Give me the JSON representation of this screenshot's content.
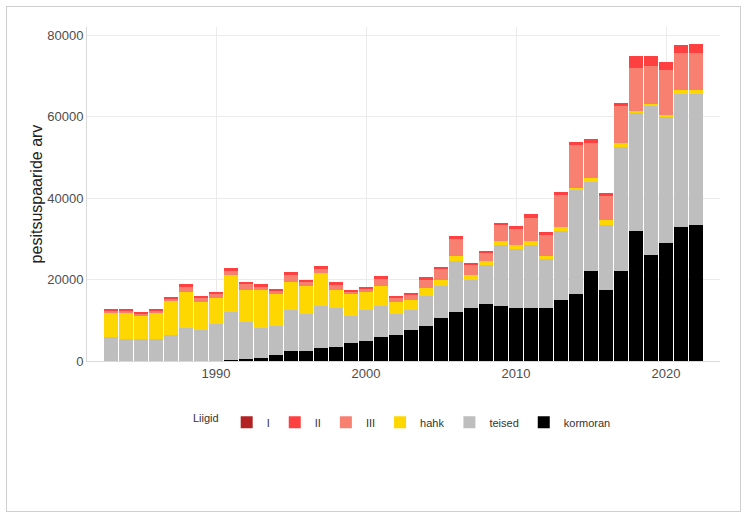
{
  "chart_data": {
    "type": "bar",
    "stacked": true,
    "y_label": "pesitsuspaaride arv",
    "legend_title": "Liigid",
    "legend": "bottom",
    "grid": true,
    "x": [
      1983,
      1984,
      1985,
      1986,
      1987,
      1988,
      1989,
      1990,
      1991,
      1992,
      1993,
      1994,
      1995,
      1996,
      1997,
      1998,
      1999,
      2000,
      2001,
      2002,
      2003,
      2004,
      2005,
      2006,
      2007,
      2008,
      2009,
      2010,
      2011,
      2012,
      2013,
      2014,
      2015,
      2016,
      2017,
      2018,
      2019,
      2020,
      2021,
      2022
    ],
    "xlim": [
      1981.4,
      2023.6
    ],
    "xticks": [
      1990,
      2000,
      2010,
      2020
    ],
    "ylim": [
      0,
      82000
    ],
    "yticks": [
      0,
      20000,
      40000,
      60000,
      80000
    ],
    "series": [
      {
        "name": "I",
        "color": "#b22222",
        "values": [
          0,
          0,
          0,
          0,
          0,
          0,
          0,
          0,
          0,
          0,
          0,
          0,
          0,
          0,
          0,
          0,
          0,
          0,
          0,
          0,
          0,
          0,
          0,
          0,
          0,
          0,
          0,
          0,
          0,
          0,
          0,
          0,
          0,
          0,
          0,
          0,
          0,
          0,
          0,
          0
        ]
      },
      {
        "name": "II",
        "color": "#ff4040",
        "values": [
          600,
          500,
          500,
          600,
          500,
          800,
          500,
          500,
          600,
          600,
          600,
          600,
          600,
          500,
          700,
          600,
          400,
          300,
          600,
          500,
          600,
          600,
          500,
          600,
          500,
          500,
          500,
          700,
          1000,
          600,
          700,
          800,
          1100,
          800,
          900,
          2800,
          2500,
          2000,
          2000,
          2300
        ]
      },
      {
        "name": "III",
        "color": "#f88070",
        "values": [
          400,
          400,
          500,
          500,
          500,
          1200,
          1000,
          1000,
          1200,
          1300,
          700,
          700,
          1700,
          800,
          1200,
          1200,
          500,
          700,
          1700,
          1000,
          1200,
          2000,
          2500,
          4200,
          2500,
          2000,
          4000,
          4000,
          5500,
          5200,
          7800,
          10500,
          8500,
          6000,
          9000,
          10500,
          9500,
          11000,
          9000,
          9000
        ]
      },
      {
        "name": "hahk",
        "color": "#ffd700",
        "values": [
          6000,
          6300,
          5700,
          6200,
          8300,
          9000,
          7000,
          6500,
          9000,
          8000,
          9500,
          8000,
          7000,
          7000,
          8000,
          4500,
          5500,
          4500,
          5000,
          3000,
          2500,
          2000,
          1500,
          1300,
          1000,
          1000,
          1000,
          1000,
          1000,
          800,
          1000,
          500,
          1000,
          1000,
          1000,
          500,
          500,
          500,
          1000,
          1000
        ]
      },
      {
        "name": "teised",
        "color": "#bebebe",
        "values": [
          5800,
          5500,
          5300,
          5500,
          6500,
          8000,
          7500,
          9000,
          11700,
          9000,
          7200,
          7000,
          10000,
          9000,
          10300,
          9500,
          6500,
          7500,
          7700,
          5000,
          5000,
          7500,
          8000,
          12500,
          7000,
          9500,
          15000,
          14500,
          15500,
          12000,
          17000,
          25500,
          22000,
          16000,
          30500,
          29000,
          36500,
          31000,
          32500,
          32000
        ]
      },
      {
        "name": "kormoran",
        "color": "#000000",
        "values": [
          0,
          0,
          0,
          0,
          0,
          0,
          0,
          0,
          300,
          500,
          800,
          1500,
          2500,
          2500,
          3200,
          3500,
          4500,
          5000,
          5800,
          6500,
          7500,
          8500,
          10500,
          12000,
          13000,
          14000,
          13500,
          13000,
          13000,
          13000,
          15000,
          16500,
          22000,
          17500,
          22000,
          32000,
          26000,
          29000,
          33000,
          33500
        ]
      }
    ]
  }
}
